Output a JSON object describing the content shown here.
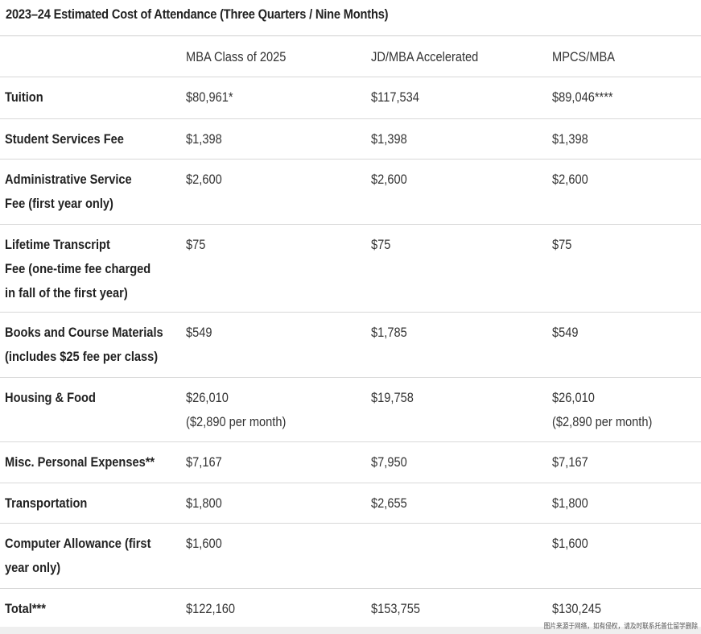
{
  "title": "2023–24 Estimated Cost of Attendance (Three Quarters / Nine Months)",
  "columns": [
    "",
    "MBA Class of 2025",
    "JD/MBA Accelerated",
    "MPCS/MBA"
  ],
  "rows": [
    {
      "label": [
        "Tuition"
      ],
      "values": [
        [
          "$80,961*"
        ],
        [
          "$117,534"
        ],
        [
          "$89,046****"
        ]
      ]
    },
    {
      "label": [
        "Student Services Fee"
      ],
      "values": [
        [
          "$1,398"
        ],
        [
          "$1,398"
        ],
        [
          "$1,398"
        ]
      ]
    },
    {
      "label": [
        "Administrative Service",
        "Fee (first year only)"
      ],
      "values": [
        [
          "$2,600"
        ],
        [
          "$2,600"
        ],
        [
          "$2,600"
        ]
      ]
    },
    {
      "label": [
        "Lifetime Transcript",
        "Fee (one-time fee charged",
        "in fall of the first year)"
      ],
      "values": [
        [
          "$75"
        ],
        [
          "$75"
        ],
        [
          "$75"
        ]
      ]
    },
    {
      "label": [
        "Books and Course Materials",
        "(includes $25 fee per class)"
      ],
      "values": [
        [
          "$549"
        ],
        [
          "$1,785"
        ],
        [
          "$549"
        ]
      ]
    },
    {
      "label": [
        "Housing & Food"
      ],
      "values": [
        [
          "$26,010",
          "($2,890 per month)"
        ],
        [
          "$19,758"
        ],
        [
          "$26,010",
          "($2,890 per month)"
        ]
      ]
    },
    {
      "label": [
        "Misc. Personal Expenses**"
      ],
      "values": [
        [
          "$7,167"
        ],
        [
          "$7,950"
        ],
        [
          "$7,167"
        ]
      ]
    },
    {
      "label": [
        "Transportation"
      ],
      "values": [
        [
          "$1,800"
        ],
        [
          "$2,655"
        ],
        [
          "$1,800"
        ]
      ]
    },
    {
      "label": [
        "Computer Allowance (first",
        "year only)"
      ],
      "values": [
        [
          "$1,600"
        ],
        [
          ""
        ],
        [
          "$1,600"
        ]
      ]
    },
    {
      "label": [
        "Total***"
      ],
      "values": [
        [
          "$122,160"
        ],
        [
          "$153,755"
        ],
        [
          "$130,245"
        ]
      ]
    }
  ],
  "watermark": "图片来源于网络，如有侵权，请及时联系托普仕留学删除"
}
